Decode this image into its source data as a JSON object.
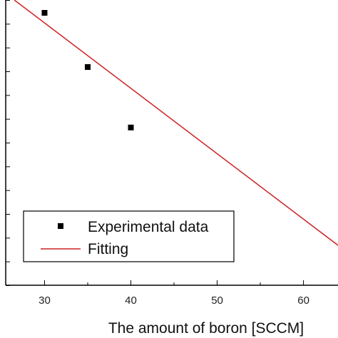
{
  "chart_data": {
    "type": "scatter",
    "title": "",
    "xlabel": "The amount of boron [SCCM]",
    "ylabel": "",
    "xlim": [
      25.5,
      64
    ],
    "x_ticks": [
      30,
      40,
      50,
      60
    ],
    "x_minor_step": 5,
    "ylim": [
      0,
      1
    ],
    "y_ticks_count": 12,
    "grid": false,
    "legend": {
      "placement": "bottom-left"
    },
    "series": [
      {
        "name": "Experimental data",
        "kind": "scatter",
        "marker": "square",
        "color": "#000000",
        "x": [
          30,
          35,
          40
        ],
        "y": [
          0.955,
          0.765,
          0.553
        ]
      },
      {
        "name": "Fitting",
        "kind": "line",
        "color": "#cc2222",
        "x": [
          26.5,
          64
        ],
        "y": [
          1.0,
          0.14
        ]
      }
    ]
  }
}
